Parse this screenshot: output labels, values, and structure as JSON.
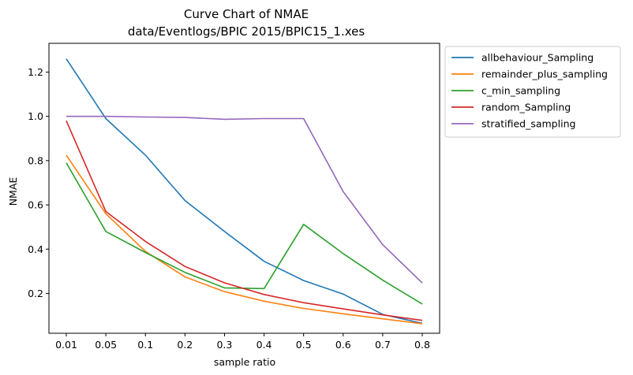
{
  "chart_data": {
    "type": "line",
    "title": "Curve Chart of NMAE",
    "subtitle": "data/Eventlogs/BPIC 2015/BPIC15_1.xes",
    "xlabel": "sample ratio",
    "ylabel": "NMAE",
    "categories": [
      "0.01",
      "0.05",
      "0.1",
      "0.2",
      "0.3",
      "0.4",
      "0.5",
      "0.6",
      "0.7",
      "0.8"
    ],
    "ylim": [
      0.02,
      1.33
    ],
    "yticks": [
      0.2,
      0.4,
      0.6,
      0.8,
      1.0,
      1.2
    ],
    "ytick_labels": [
      "0.2",
      "0.4",
      "0.6",
      "0.8",
      "1.0",
      "1.2"
    ],
    "grid": false,
    "legend_position": "outside-top-right",
    "series": [
      {
        "name": "allbehaviour_Sampling",
        "color": "#1f77b4",
        "values": [
          1.26,
          0.99,
          0.825,
          0.62,
          0.48,
          0.345,
          0.258,
          0.197,
          0.105,
          0.065
        ]
      },
      {
        "name": "remainder_plus_sampling",
        "color": "#ff7f0e",
        "values": [
          0.825,
          0.56,
          0.39,
          0.275,
          0.208,
          0.165,
          0.132,
          0.108,
          0.085,
          0.063
        ]
      },
      {
        "name": "c_min_sampling",
        "color": "#2ca02c",
        "values": [
          0.79,
          0.48,
          0.385,
          0.295,
          0.225,
          0.222,
          0.512,
          0.38,
          0.26,
          0.152
        ]
      },
      {
        "name": "random_Sampling",
        "color": "#d62728",
        "values": [
          0.98,
          0.57,
          0.435,
          0.322,
          0.248,
          0.195,
          0.158,
          0.13,
          0.103,
          0.078
        ]
      },
      {
        "name": "stratified_sampling",
        "color": "#9467bd",
        "values": [
          1.0,
          1.0,
          0.997,
          0.995,
          0.987,
          0.99,
          0.99,
          0.66,
          0.42,
          0.247
        ]
      }
    ]
  }
}
